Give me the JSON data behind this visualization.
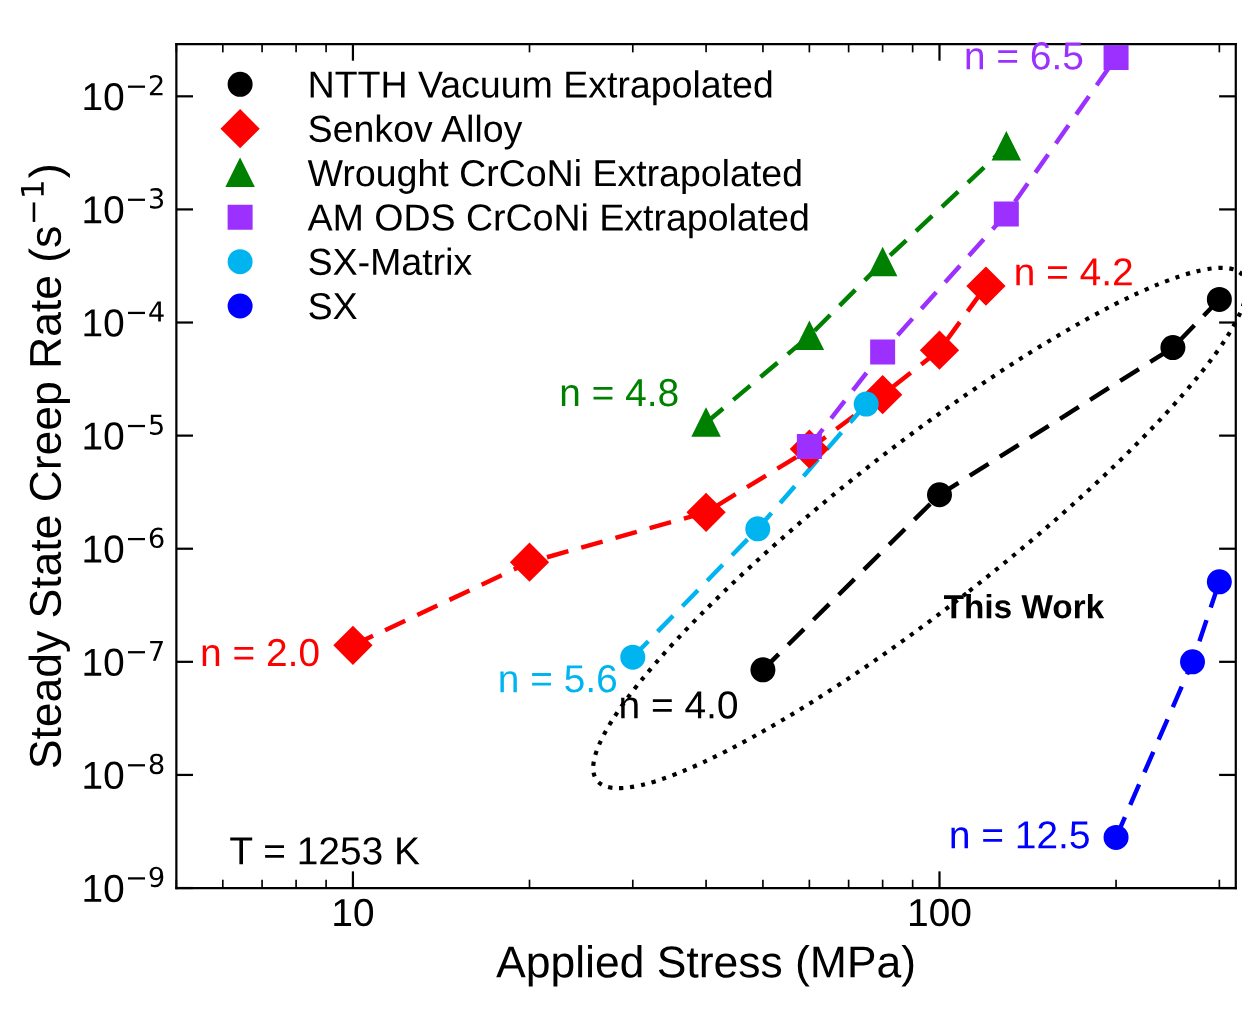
{
  "chart_data": {
    "type": "line",
    "log": "xy",
    "xlabel": "Applied Stress (MPa)",
    "ylabel": "Steady State Creep Rate (s$^{−1}$)",
    "xlim": [
      5,
      320
    ],
    "ylim": [
      1e-09,
      0.029
    ],
    "xticks": [
      10,
      100
    ],
    "yticks": [
      {
        "value": 1e-09,
        "label": "10$^{−9}$"
      },
      {
        "value": 1e-08,
        "label": "10$^{−8}$"
      },
      {
        "value": 1e-07,
        "label": "10$^{−7}$"
      },
      {
        "value": 1e-06,
        "label": "10$^{−6}$"
      },
      {
        "value": 1e-05,
        "label": "10$^{−5}$"
      },
      {
        "value": 0.0001,
        "label": "10$^{−4}$"
      },
      {
        "value": 0.001,
        "label": "10$^{−3}$"
      },
      {
        "value": 0.01,
        "label": "10$^{−2}$"
      }
    ],
    "grid": false,
    "legend": "top left",
    "line_style": "dashed",
    "series": [
      {
        "name": "NTTH Vacuum Extrapolated",
        "color": "#000000",
        "marker": "circle",
        "x": [
          50,
          100,
          250,
          300
        ],
        "values": [
          8.5e-08,
          3e-06,
          6e-05,
          0.00016
        ]
      },
      {
        "name": "Senkov Alloy",
        "color": "#ff0000",
        "marker": "diamond",
        "x": [
          10,
          20,
          40,
          60,
          80,
          100,
          120
        ],
        "values": [
          1.4e-07,
          7.6e-07,
          2.1e-06,
          7.6e-06,
          2.3e-05,
          5.7e-05,
          0.00021
        ]
      },
      {
        "name": "Wrought CrCoNi Extrapolated",
        "color": "#008000",
        "marker": "triangle",
        "x": [
          40,
          60,
          80,
          130
        ],
        "values": [
          1.3e-05,
          7.6e-05,
          0.00034,
          0.0036
        ]
      },
      {
        "name": "AM ODS CrCoNi Extrapolated",
        "color": "#9b30ff",
        "marker": "square",
        "x": [
          60,
          80,
          130,
          200
        ],
        "values": [
          8e-06,
          5.5e-05,
          0.00091,
          0.022
        ]
      },
      {
        "name": "SX-Matrix",
        "color": "#00b4f0",
        "marker": "circle",
        "x": [
          30,
          49,
          75
        ],
        "values": [
          1.1e-07,
          1.5e-06,
          1.9e-05
        ]
      },
      {
        "name": "SX",
        "color": "#0000ff",
        "marker": "circle",
        "x": [
          200,
          270,
          300
        ],
        "values": [
          2.8e-09,
          1e-07,
          5.1e-07
        ]
      }
    ],
    "annotations": [
      "n = 6.5",
      "n = 4.2",
      "n = 4.8",
      "n = 2.0",
      "n = 5.6",
      "n = 4.0",
      "n = 12.5",
      "This Work",
      "T = 1253 K"
    ]
  }
}
